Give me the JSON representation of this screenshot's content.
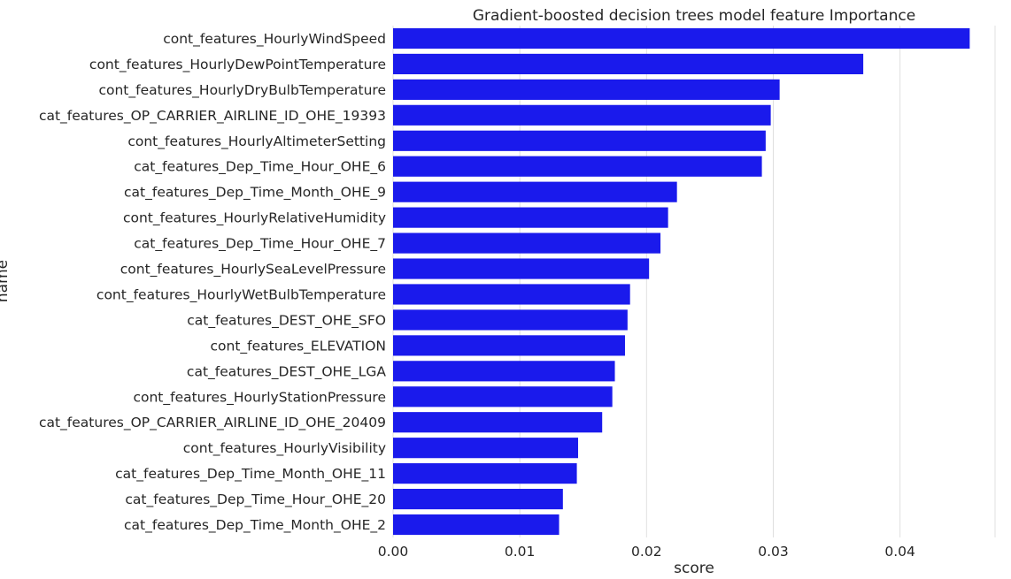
{
  "chart_data": {
    "type": "bar",
    "orientation": "horizontal",
    "title": "Gradient-boosted decision trees model feature Importance",
    "xlabel": "score",
    "ylabel": "name",
    "xlim": [
      0,
      0.0475
    ],
    "xticks": [
      0.0,
      0.01,
      0.02,
      0.03,
      0.04
    ],
    "xtick_labels": [
      "0.00",
      "0.01",
      "0.02",
      "0.03",
      "0.04"
    ],
    "grid": "vertical",
    "bar_color": "#1a1aec",
    "grid_color": "#e0e0e0",
    "categories": [
      "cont_features_HourlyWindSpeed",
      "cont_features_HourlyDewPointTemperature",
      "cont_features_HourlyDryBulbTemperature",
      "cat_features_OP_CARRIER_AIRLINE_ID_OHE_19393",
      "cont_features_HourlyAltimeterSetting",
      "cat_features_Dep_Time_Hour_OHE_6",
      "cat_features_Dep_Time_Month_OHE_9",
      "cont_features_HourlyRelativeHumidity",
      "cat_features_Dep_Time_Hour_OHE_7",
      "cont_features_HourlySeaLevelPressure",
      "cont_features_HourlyWetBulbTemperature",
      "cat_features_DEST_OHE_SFO",
      "cont_features_ELEVATION",
      "cat_features_DEST_OHE_LGA",
      "cont_features_HourlyStationPressure",
      "cat_features_OP_CARRIER_AIRLINE_ID_OHE_20409",
      "cont_features_HourlyVisibility",
      "cat_features_Dep_Time_Month_OHE_11",
      "cat_features_Dep_Time_Hour_OHE_20",
      "cat_features_Dep_Time_Month_OHE_2"
    ],
    "values": [
      0.0455,
      0.0371,
      0.0305,
      0.0298,
      0.0294,
      0.0291,
      0.0224,
      0.0217,
      0.0211,
      0.0202,
      0.0187,
      0.0185,
      0.0183,
      0.0175,
      0.0173,
      0.0165,
      0.0146,
      0.0145,
      0.0134,
      0.0131
    ]
  }
}
